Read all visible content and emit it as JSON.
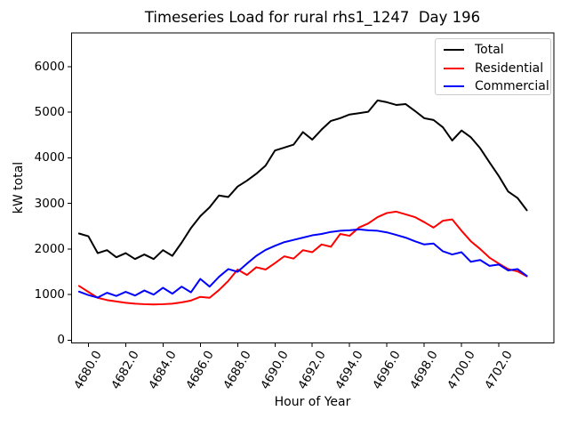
{
  "chart_data": {
    "type": "line",
    "title": "Timeseries Load for rural rhs1_1247  Day 196",
    "xlabel": "Hour of Year",
    "ylabel": "kW total",
    "grid": false,
    "legend_position": "upper right",
    "xlim": [
      4679.1,
      4704.95
    ],
    "ylim": [
      -60,
      6740
    ],
    "xticks": {
      "values": [
        4680,
        4682,
        4684,
        4686,
        4688,
        4690,
        4692,
        4694,
        4696,
        4698,
        4700,
        4702
      ],
      "labels": [
        "4680.0",
        "4682.0",
        "4684.0",
        "4686.0",
        "4688.0",
        "4690.0",
        "4692.0",
        "4694.0",
        "4696.0",
        "4698.0",
        "4700.0",
        "4702.0"
      ]
    },
    "yticks": {
      "values": [
        0,
        1000,
        2000,
        3000,
        4000,
        5000,
        6000
      ],
      "labels": [
        "0",
        "1000",
        "2000",
        "3000",
        "4000",
        "5000",
        "6000"
      ]
    },
    "x": [
      4679.5,
      4680.0,
      4680.5,
      4681.0,
      4681.5,
      4682.0,
      4682.5,
      4683.0,
      4683.5,
      4684.0,
      4684.5,
      4685.0,
      4685.5,
      4686.0,
      4686.5,
      4687.0,
      4687.5,
      4688.0,
      4688.5,
      4689.0,
      4689.5,
      4690.0,
      4690.5,
      4691.0,
      4691.5,
      4692.0,
      4692.5,
      4693.0,
      4693.5,
      4694.0,
      4694.5,
      4695.0,
      4695.5,
      4696.0,
      4696.5,
      4697.0,
      4697.5,
      4698.0,
      4698.5,
      4699.0,
      4699.5,
      4700.0,
      4700.5,
      4701.0,
      4701.5,
      4702.0,
      4702.5,
      4703.0,
      4703.5
    ],
    "series": [
      {
        "name": "Total",
        "color": "#000000",
        "values": [
          2340,
          2280,
          1910,
          1975,
          1820,
          1910,
          1780,
          1880,
          1780,
          1975,
          1850,
          2140,
          2460,
          2720,
          2915,
          3175,
          3140,
          3370,
          3500,
          3650,
          3830,
          4160,
          4225,
          4290,
          4565,
          4400,
          4620,
          4810,
          4870,
          4950,
          4980,
          5010,
          5260,
          5220,
          5160,
          5180,
          5030,
          4870,
          4830,
          4670,
          4380,
          4600,
          4450,
          4210,
          3900,
          3600,
          3260,
          3120,
          2850
        ]
      },
      {
        "name": "Residential",
        "color": "#ff0000",
        "values": [
          1190,
          1060,
          930,
          880,
          850,
          820,
          800,
          790,
          785,
          790,
          800,
          830,
          870,
          950,
          930,
          1100,
          1300,
          1550,
          1430,
          1600,
          1550,
          1690,
          1840,
          1790,
          1975,
          1930,
          2100,
          2050,
          2330,
          2290,
          2470,
          2560,
          2700,
          2790,
          2820,
          2760,
          2700,
          2590,
          2470,
          2620,
          2650,
          2400,
          2170,
          2000,
          1810,
          1680,
          1560,
          1510,
          1400
        ]
      },
      {
        "name": "Commercial",
        "color": "#0000ff",
        "values": [
          1065,
          990,
          935,
          1040,
          970,
          1060,
          980,
          1090,
          1000,
          1150,
          1020,
          1175,
          1050,
          1345,
          1175,
          1390,
          1560,
          1500,
          1680,
          1850,
          1980,
          2070,
          2150,
          2200,
          2250,
          2300,
          2330,
          2375,
          2400,
          2410,
          2430,
          2410,
          2400,
          2365,
          2310,
          2250,
          2170,
          2100,
          2120,
          1950,
          1880,
          1930,
          1720,
          1760,
          1630,
          1660,
          1530,
          1560,
          1410
        ]
      }
    ]
  }
}
